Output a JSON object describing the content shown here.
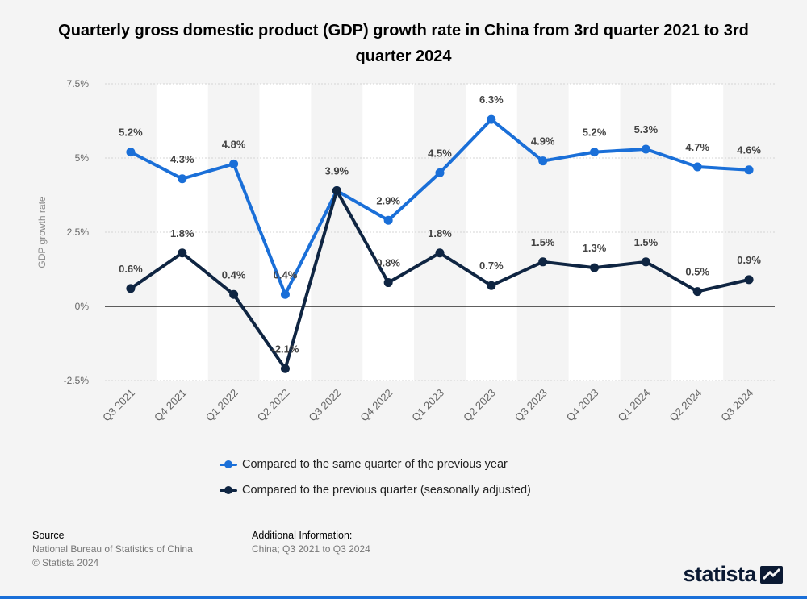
{
  "title": "Quarterly gross domestic product (GDP) growth rate in China from 3rd quarter 2021 to 3rd quarter 2024",
  "chart_data": {
    "type": "line",
    "title": "Quarterly gross domestic product (GDP) growth rate in China from 3rd quarter 2021 to 3rd quarter 2024",
    "ylabel": "GDP growth rate",
    "xlabel": "",
    "categories": [
      "Q3 2021",
      "Q4 2021",
      "Q1 2022",
      "Q2 2022",
      "Q3 2022",
      "Q4 2022",
      "Q1 2023",
      "Q2 2023",
      "Q3 2023",
      "Q4 2023",
      "Q1 2024",
      "Q2 2024",
      "Q3 2024"
    ],
    "ylim": [
      -2.5,
      7.5
    ],
    "yticks": [
      {
        "value": 7.5,
        "label": "7.5%"
      },
      {
        "value": 5,
        "label": "5%"
      },
      {
        "value": 2.5,
        "label": "2.5%"
      },
      {
        "value": 0,
        "label": "0%"
      },
      {
        "value": -2.5,
        "label": "-2.5%"
      }
    ],
    "grid": true,
    "legend_position": "bottom",
    "series": [
      {
        "name": "Compared to the same quarter of the previous year",
        "color": "#1a6fd8",
        "values": [
          5.2,
          4.3,
          4.8,
          0.4,
          3.9,
          2.9,
          4.5,
          6.3,
          4.9,
          5.2,
          5.3,
          4.7,
          4.6
        ],
        "labels": [
          "5.2%",
          "4.3%",
          "4.8%",
          "0.4%",
          "3.9%",
          "2.9%",
          "4.5%",
          "6.3%",
          "4.9%",
          "5.2%",
          "5.3%",
          "4.7%",
          "4.6%"
        ]
      },
      {
        "name": "Compared to the previous quarter (seasonally adjusted)",
        "color": "#0f2542",
        "values": [
          0.6,
          1.8,
          0.4,
          -2.1,
          3.9,
          0.8,
          1.8,
          0.7,
          1.5,
          1.3,
          1.5,
          0.5,
          0.9
        ],
        "labels": [
          "0.6%",
          "1.8%",
          "0.4%",
          "-2.1%",
          "",
          "0.8%",
          "1.8%",
          "0.7%",
          "1.5%",
          "1.3%",
          "1.5%",
          "0.5%",
          "0.9%"
        ]
      }
    ]
  },
  "footer": {
    "source_heading": "Source",
    "source_line1": "National Bureau of Statistics of China",
    "source_line2": "© Statista 2024",
    "info_heading": "Additional Information:",
    "info_line1": "China; Q3 2021 to Q3 2024"
  },
  "logo": {
    "text": "statista",
    "icon": "statista-logo-icon"
  }
}
